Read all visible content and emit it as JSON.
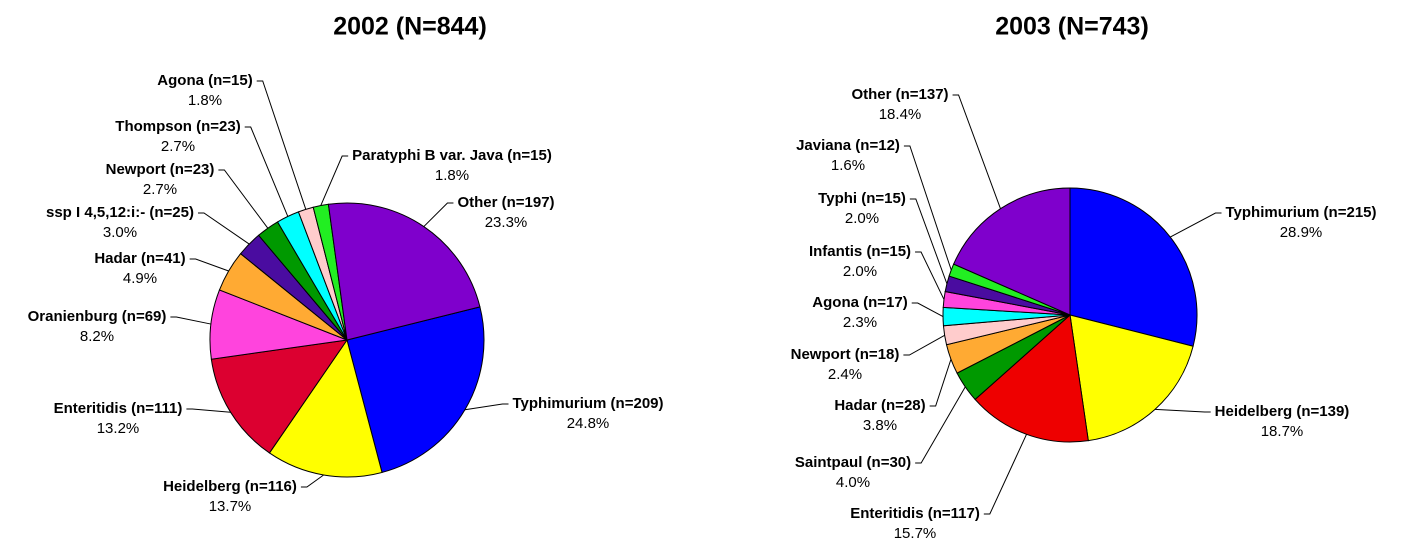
{
  "chart_data": [
    {
      "type": "pie",
      "title": "2002 (N=844)",
      "categories": [
        "Typhimurium (n=209)",
        "Heidelberg (n=116)",
        "Enteritidis (n=111)",
        "Oranienburg (n=69)",
        "Hadar (n=41)",
        "ssp I 4,5,12:i:- (n=25)",
        "Newport (n=23)",
        "Thompson (n=23)",
        "Agona (n=15)",
        "Paratyphi B var. Java (n=15)",
        "Other (n=197)"
      ],
      "values": [
        24.8,
        13.7,
        13.2,
        8.2,
        4.9,
        3.0,
        2.7,
        2.7,
        1.8,
        1.8,
        23.3
      ],
      "value_labels": [
        "24.8%",
        "13.7%",
        "13.2%",
        "8.2%",
        "4.9%",
        "3.0%",
        "2.7%",
        "2.7%",
        "1.8%",
        "1.8%",
        "23.3%"
      ],
      "colors": [
        "#0000ff",
        "#ffff00",
        "#dc0030",
        "#ff44dd",
        "#ffaa33",
        "#4a0ca0",
        "#009900",
        "#00ffff",
        "#ffcccc",
        "#22ee22",
        "#7f00cc"
      ]
    },
    {
      "type": "pie",
      "title": "2003 (N=743)",
      "categories": [
        "Typhimurium (n=215)",
        "Heidelberg (n=139)",
        "Enteritidis (n=117)",
        "Saintpaul (n=30)",
        "Hadar (n=28)",
        "Newport (n=18)",
        "Agona (n=17)",
        "Infantis (n=15)",
        "Typhi (n=15)",
        "Javiana (n=12)",
        "Other (n=137)"
      ],
      "values": [
        28.9,
        18.7,
        15.7,
        4.0,
        3.8,
        2.4,
        2.3,
        2.0,
        2.0,
        1.6,
        18.4
      ],
      "value_labels": [
        "28.9%",
        "18.7%",
        "15.7%",
        "4.0%",
        "3.8%",
        "2.4%",
        "2.3%",
        "2.0%",
        "2.0%",
        "1.6%",
        "18.4%"
      ],
      "colors": [
        "#0000ff",
        "#ffff00",
        "#ee0000",
        "#009900",
        "#ffaa33",
        "#ffcccc",
        "#00ffff",
        "#ff44dd",
        "#4a0ca0",
        "#22ee22",
        "#7f00cc"
      ]
    }
  ]
}
